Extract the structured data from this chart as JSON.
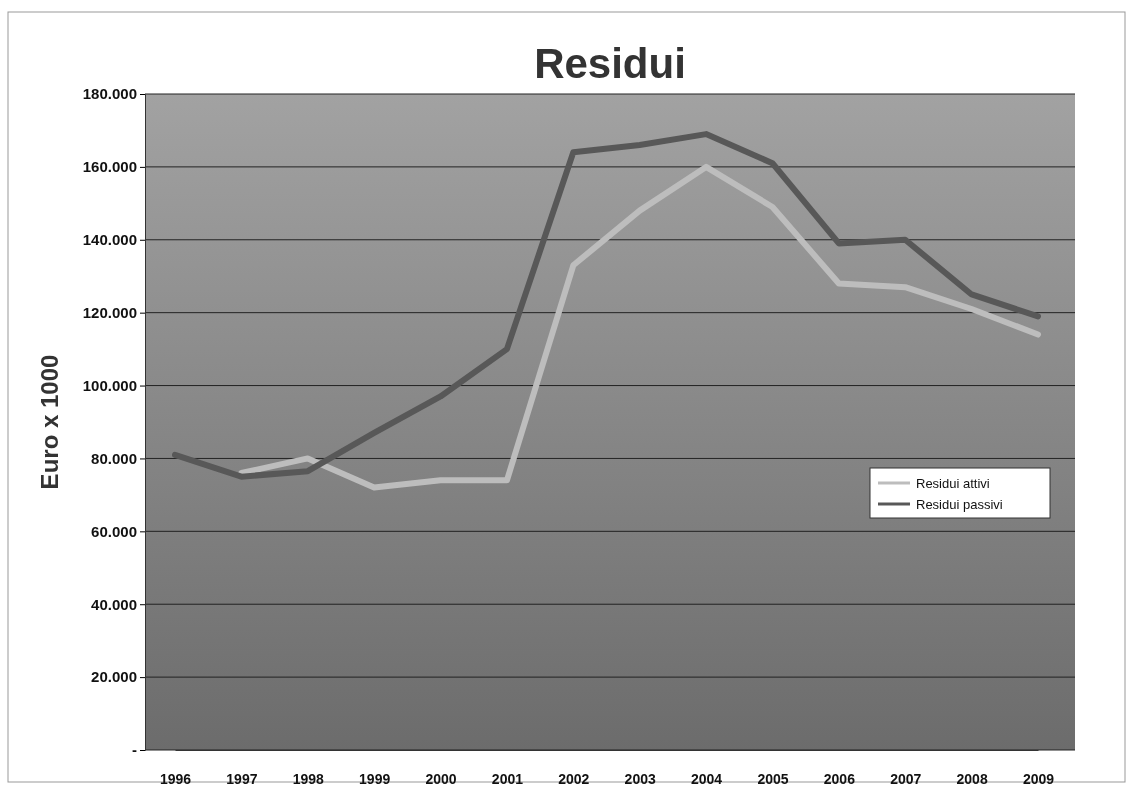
{
  "chart_data": {
    "type": "line",
    "title": "Residui",
    "ylabel": "Euro x 1000",
    "categories": [
      "1996",
      "1997",
      "1998",
      "1999",
      "2000",
      "2001",
      "2002",
      "2003",
      "2004",
      "2005",
      "2006",
      "2007",
      "2008",
      "2009"
    ],
    "series": [
      {
        "name": "Residui attivi",
        "color": "#bdbdbd",
        "values": [
          null,
          76000,
          80000,
          72000,
          74000,
          74000,
          133000,
          148000,
          160000,
          149000,
          128000,
          127000,
          121000,
          114000
        ]
      },
      {
        "name": "Residui passivi",
        "color": "#585858",
        "values": [
          81000,
          75000,
          76500,
          87000,
          97000,
          110000,
          164000,
          166000,
          169000,
          161000,
          139000,
          140000,
          125000,
          119000
        ]
      }
    ],
    "ylim": [
      0,
      180000
    ],
    "yticks": [
      {
        "value": 0,
        "label": "-"
      },
      {
        "value": 20000,
        "label": "20.000"
      },
      {
        "value": 40000,
        "label": "40.000"
      },
      {
        "value": 60000,
        "label": "60.000"
      },
      {
        "value": 80000,
        "label": "80.000"
      },
      {
        "value": 100000,
        "label": "100.000"
      },
      {
        "value": 120000,
        "label": "120.000"
      },
      {
        "value": 140000,
        "label": "140.000"
      },
      {
        "value": 160000,
        "label": "160.000"
      },
      {
        "value": 180000,
        "label": "180.000"
      }
    ],
    "grid": "y",
    "legend": "right",
    "marker": "none",
    "line_style": "solid"
  }
}
